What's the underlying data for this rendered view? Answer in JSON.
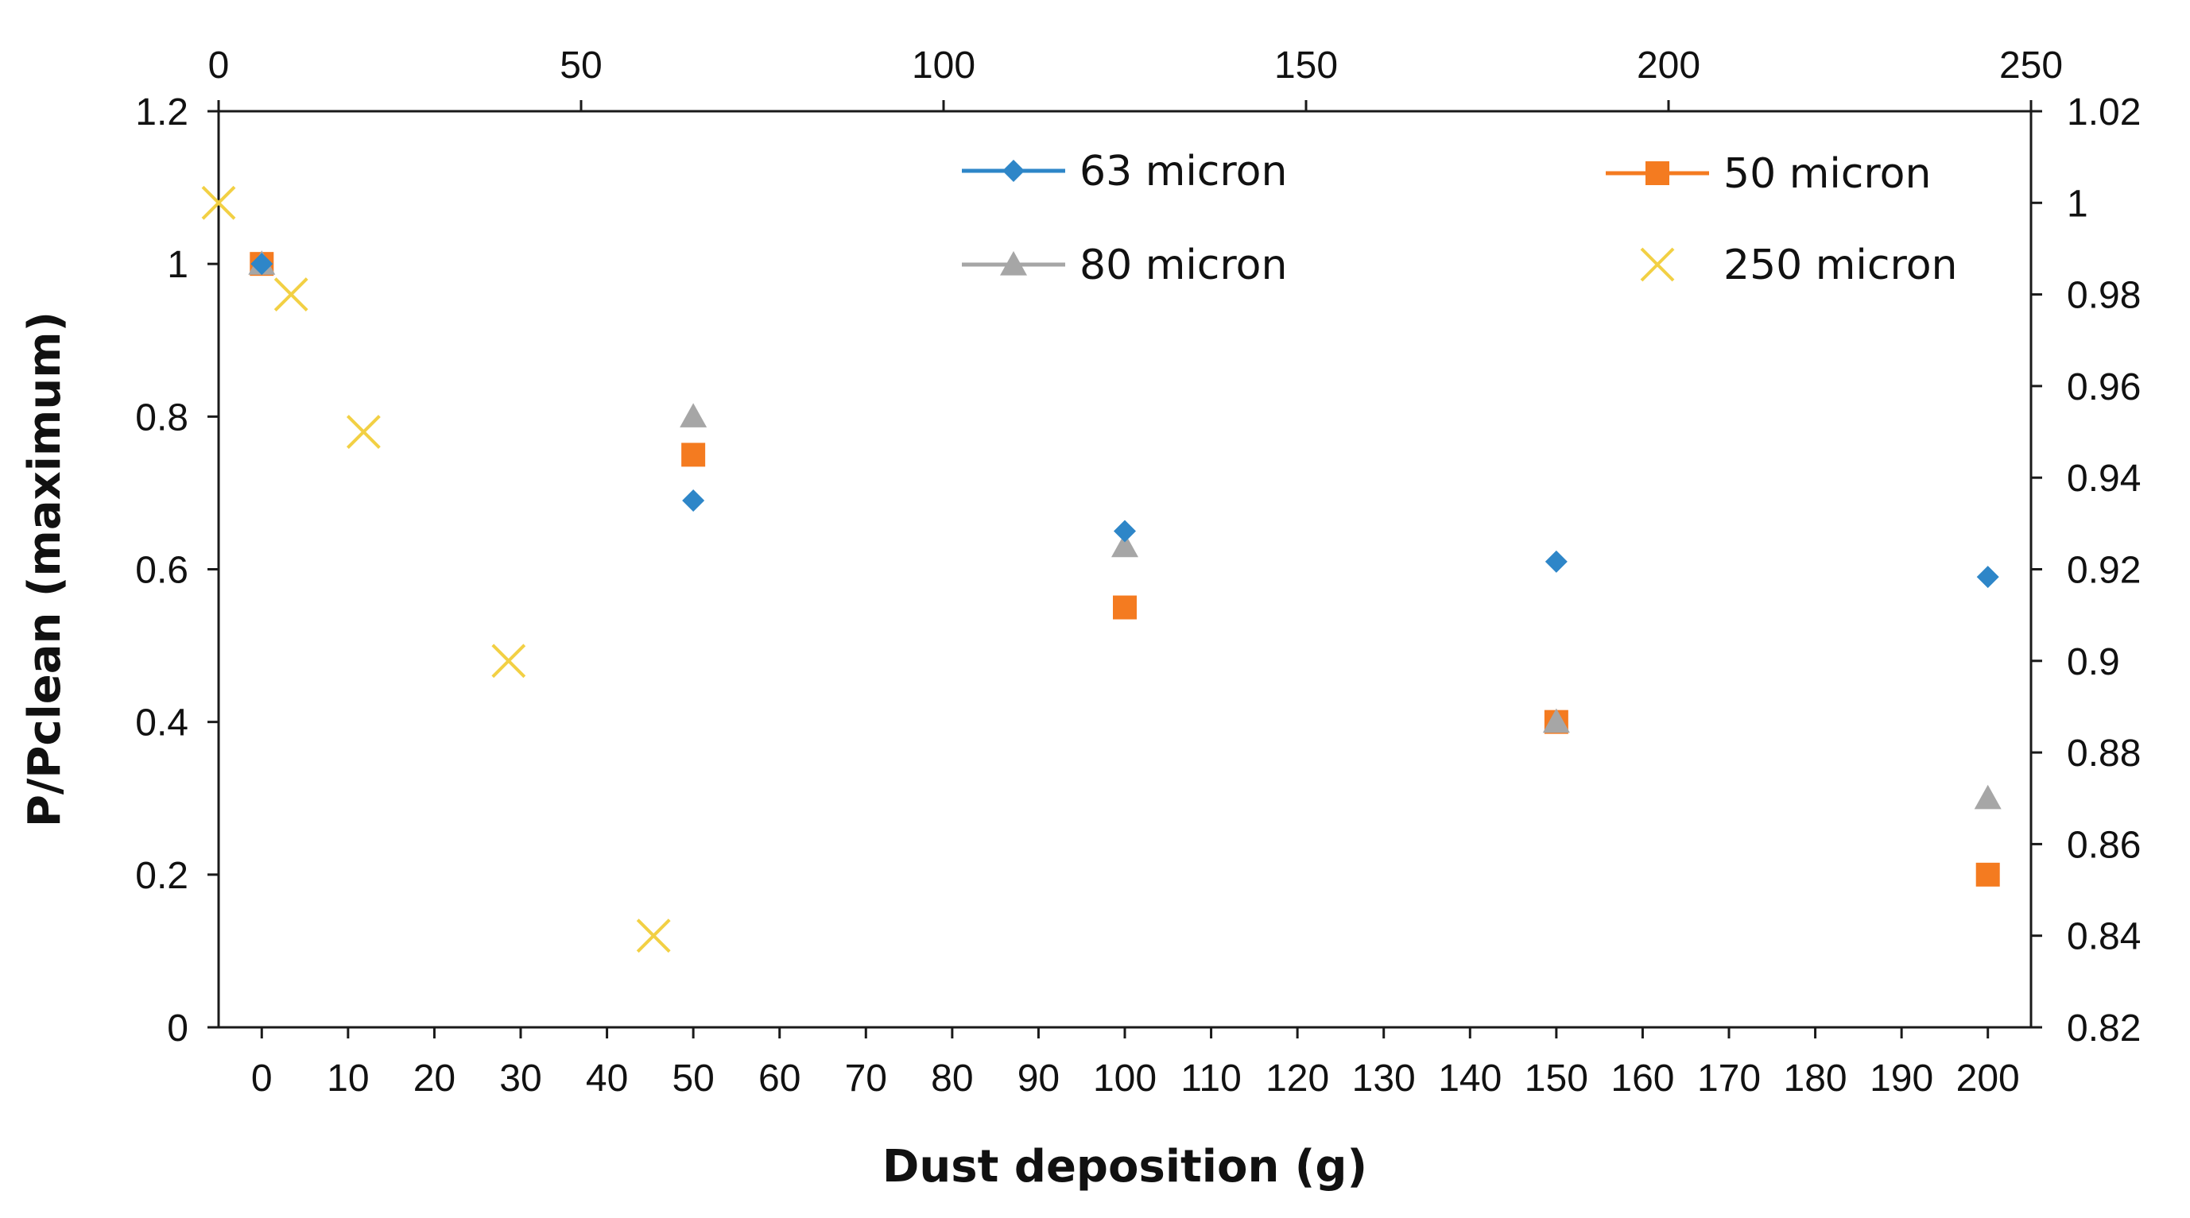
{
  "chart_data": {
    "type": "scatter",
    "title": "",
    "xlabel": "Dust deposition (g)",
    "ylabel": "P/Pclean (maximum)",
    "grid": false,
    "legend_position": "top-right",
    "bottom_axis": {
      "range": [
        -5,
        205
      ],
      "ticks": [
        "0",
        "10",
        "20",
        "30",
        "40",
        "50",
        "60",
        "70",
        "80",
        "90",
        "100",
        "110",
        "120",
        "130",
        "140",
        "150",
        "160",
        "170",
        "180",
        "190",
        "200"
      ]
    },
    "top_axis": {
      "range": [
        0,
        250
      ],
      "ticks": [
        "0",
        "50",
        "100",
        "150",
        "200",
        "250"
      ]
    },
    "left_axis": {
      "range": [
        0,
        1.2
      ],
      "ticks": [
        "0",
        "0.2",
        "0.4",
        "0.6",
        "0.8",
        "1",
        "1.2"
      ]
    },
    "right_axis": {
      "range": [
        0.82,
        1.02
      ],
      "ticks": [
        "0.82",
        "0.84",
        "0.86",
        "0.88",
        "0.9",
        "0.92",
        "0.94",
        "0.96",
        "0.98",
        "1",
        "1.02"
      ]
    },
    "series": [
      {
        "name": "63 micron",
        "marker": "diamond",
        "color": "#2E86C8",
        "x_axis": "bottom",
        "y_axis": "left",
        "x": [
          0,
          50,
          100,
          150,
          200
        ],
        "y": [
          1.0,
          0.69,
          0.65,
          0.61,
          0.59
        ]
      },
      {
        "name": "50 micron",
        "marker": "square",
        "color": "#F47B20",
        "x_axis": "bottom",
        "y_axis": "left",
        "x": [
          0,
          50,
          100,
          150,
          200
        ],
        "y": [
          1.0,
          0.75,
          0.55,
          0.4,
          0.2
        ]
      },
      {
        "name": "80 micron",
        "marker": "triangle",
        "color": "#A6A6A6",
        "x_axis": "bottom",
        "y_axis": "left",
        "x": [
          0,
          50,
          100,
          150,
          200
        ],
        "y": [
          1.0,
          0.8,
          0.63,
          0.4,
          0.3
        ]
      },
      {
        "name": "250 micron",
        "marker": "x",
        "color": "#F2D044",
        "x_axis": "top",
        "y_axis": "right",
        "x": [
          0,
          10,
          20,
          40,
          60
        ],
        "y": [
          1.0,
          0.98,
          0.95,
          0.9,
          0.84
        ]
      }
    ]
  }
}
